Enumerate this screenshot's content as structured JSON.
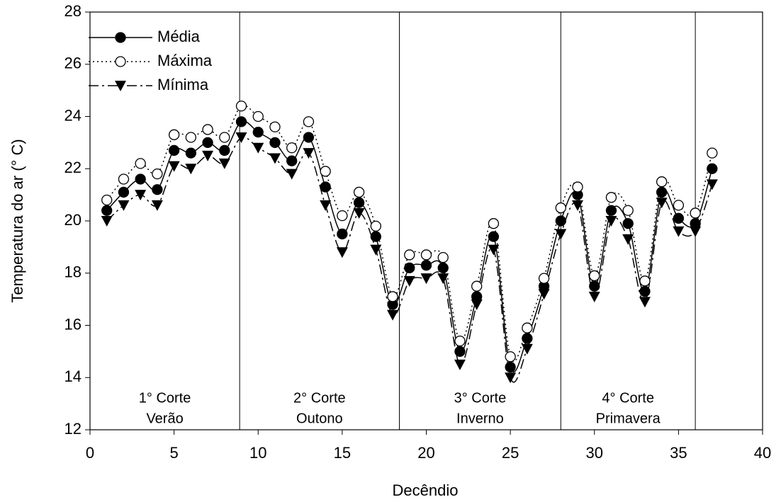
{
  "chart_data": {
    "type": "line",
    "xlabel": "Decêndio",
    "ylabel": "Temperatura do ar (° C)",
    "x": [
      1,
      2,
      3,
      4,
      5,
      6,
      7,
      8,
      9,
      10,
      11,
      12,
      13,
      14,
      15,
      16,
      17,
      18,
      19,
      20,
      21,
      22,
      23,
      24,
      25,
      26,
      27,
      28,
      29,
      30,
      31,
      32,
      33,
      34,
      35,
      36,
      37
    ],
    "series": [
      {
        "name": "Média",
        "color": "#000000",
        "marker": "filled-circle",
        "linestyle": "solid",
        "values": [
          20.4,
          21.1,
          21.6,
          21.2,
          22.7,
          22.6,
          23.0,
          22.7,
          23.8,
          23.4,
          23.0,
          22.3,
          23.2,
          21.3,
          19.5,
          20.7,
          19.4,
          16.8,
          18.2,
          18.3,
          18.2,
          15.0,
          17.1,
          19.4,
          14.4,
          15.5,
          17.5,
          20.0,
          21.0,
          17.5,
          20.4,
          19.9,
          17.3,
          21.1,
          20.1,
          19.9,
          22.0
        ]
      },
      {
        "name": "Máxima",
        "color": "#000000",
        "marker": "open-circle",
        "linestyle": "dotted",
        "values": [
          20.8,
          21.6,
          22.2,
          21.8,
          23.3,
          23.2,
          23.5,
          23.2,
          24.4,
          24.0,
          23.6,
          22.8,
          23.8,
          21.9,
          20.2,
          21.1,
          19.8,
          17.1,
          18.7,
          18.7,
          18.6,
          15.4,
          17.5,
          19.9,
          14.8,
          15.9,
          17.8,
          20.5,
          21.3,
          17.9,
          20.9,
          20.4,
          17.7,
          21.5,
          20.6,
          20.3,
          22.6
        ]
      },
      {
        "name": "Mínima",
        "color": "#000000",
        "marker": "triangle-down",
        "linestyle": "dashdot",
        "values": [
          20.0,
          20.6,
          21.0,
          20.6,
          22.1,
          22.0,
          22.5,
          22.2,
          23.2,
          22.8,
          22.4,
          21.8,
          22.6,
          20.6,
          18.8,
          20.3,
          18.9,
          16.4,
          17.7,
          17.8,
          17.8,
          14.5,
          16.8,
          18.9,
          14.0,
          15.1,
          17.2,
          19.5,
          20.6,
          17.1,
          20.0,
          19.3,
          16.9,
          20.7,
          19.6,
          19.6,
          21.4
        ]
      }
    ],
    "dividers": [
      8.9,
      18.4,
      28,
      36
    ],
    "annotations": [
      [
        "1° Corte",
        "Verão"
      ],
      [
        "2° Corte",
        "Outono"
      ],
      [
        "3° Corte",
        "Inverno"
      ],
      [
        "4° Corte",
        "Primavera"
      ]
    ],
    "xlim": [
      0,
      40
    ],
    "xticks": [
      0,
      5,
      10,
      15,
      20,
      25,
      30,
      35,
      40
    ],
    "ylim": [
      12,
      28
    ],
    "yticks": [
      12,
      14,
      16,
      18,
      20,
      22,
      24,
      26,
      28
    ],
    "grid": false,
    "legend": "upper left"
  }
}
